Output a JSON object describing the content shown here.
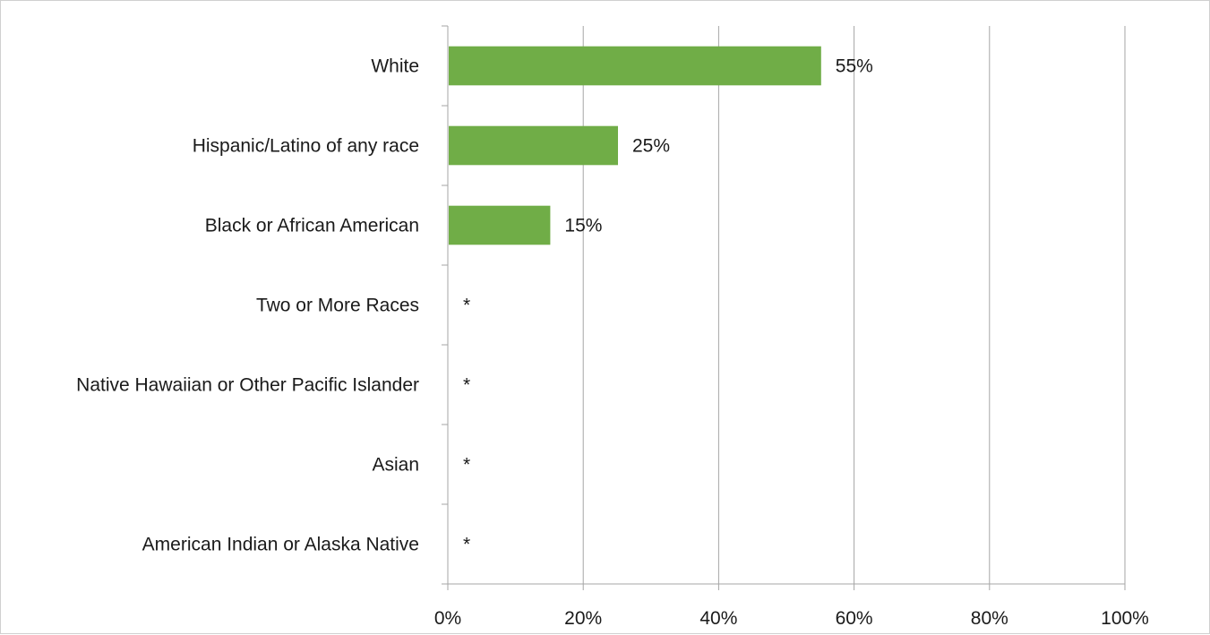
{
  "chart_data": {
    "type": "bar",
    "orientation": "horizontal",
    "title": "",
    "xlabel": "",
    "ylabel": "",
    "xlim": [
      0,
      100
    ],
    "x_ticks": [
      "0%",
      "20%",
      "40%",
      "60%",
      "80%",
      "100%"
    ],
    "x_tick_values": [
      0,
      20,
      40,
      60,
      80,
      100
    ],
    "grid": "vertical",
    "legend": "none",
    "bar_color": "#70ad47",
    "categories": [
      "White",
      "Hispanic/Latino of any race",
      "Black or African American",
      "Two or More Races",
      "Native Hawaiian or Other Pacific Islander",
      "Asian",
      "American Indian or Alaska Native"
    ],
    "values": [
      55,
      25,
      15,
      null,
      null,
      null,
      null
    ],
    "data_labels": [
      "55%",
      "25%",
      "15%",
      "*",
      "*",
      "*",
      "*"
    ]
  }
}
